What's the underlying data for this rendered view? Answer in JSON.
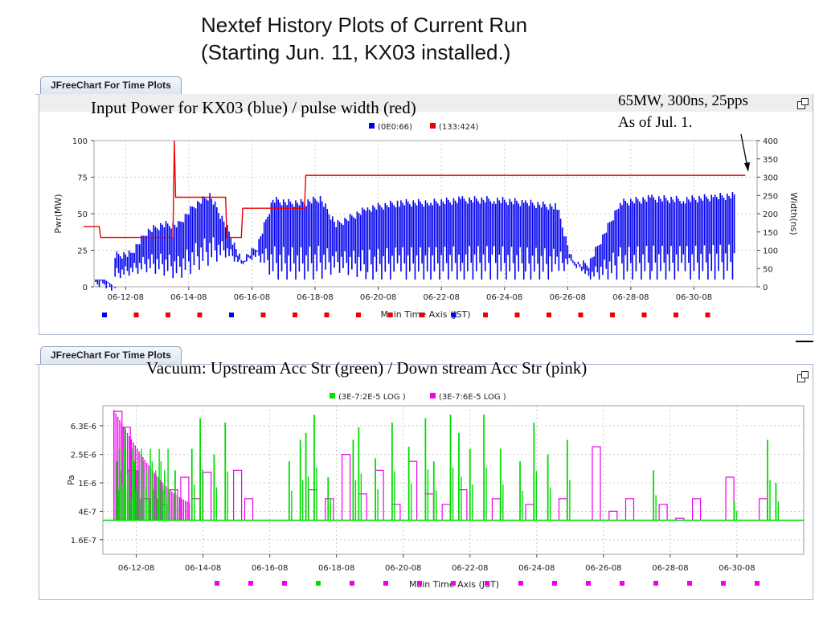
{
  "title_lines": [
    "Nextef History Plots of Current Run",
    "(Starting Jun. 11, KX03 installed.)"
  ],
  "panels": [
    {
      "tab_label": "JFreeChart For Time Plots",
      "heading": "Input Power for KX03 (blue) / pulse width (red)",
      "note": [
        "65MW, 300ns, 25pps",
        "As of Jul. 1."
      ]
    },
    {
      "tab_label": "JFreeChart For Time Plots",
      "heading": "Vacuum: Upstream Acc Str (green) / Down stream Acc Str (pink)"
    }
  ],
  "chart_data": [
    {
      "type": "line",
      "xlabel": "Main Time Axis (JST)",
      "ylabel": "Pwr(MW)",
      "y2label": "Width(ns)",
      "xlim": [
        "06-11-08",
        "07-02-08"
      ],
      "ylim": [
        0,
        100
      ],
      "y2lim": [
        0,
        400
      ],
      "yticks": [
        "0",
        "25",
        "50",
        "75",
        "100"
      ],
      "y2ticks": [
        "0",
        "50",
        "100",
        "150",
        "200",
        "250",
        "300",
        "350",
        "400"
      ],
      "xticks": [
        "06-12-08",
        "06-14-08",
        "06-16-08",
        "06-18-08",
        "06-20-08",
        "06-22-08",
        "06-24-08",
        "06-26-08",
        "06-28-08",
        "06-30-08"
      ],
      "grid": true,
      "legend_position": "top-center",
      "series": [
        {
          "name": "(0E0:66)",
          "color": "#0000ee",
          "axis": "left",
          "x": [
            "06-11-08",
            "06-11-16",
            "06-11-24",
            "06-12-00",
            "06-12-12",
            "06-13-00",
            "06-13-12",
            "06-14-00",
            "06-14-12",
            "06-15-00",
            "06-15-12",
            "06-16-00",
            "06-16-12",
            "06-17-00",
            "06-17-12",
            "06-18-00",
            "06-18-12",
            "06-19-00",
            "06-20-00",
            "06-21-00",
            "06-22-00",
            "06-23-00",
            "06-24-00",
            "06-25-00",
            "06-26-00",
            "06-26-12",
            "06-27-00",
            "06-28-00",
            "06-29-00",
            "06-30-00",
            "07-01-00",
            "07-01-16"
          ],
          "values": [
            5,
            5,
            0,
            24,
            25,
            40,
            45,
            45,
            58,
            65,
            45,
            20,
            30,
            62,
            60,
            60,
            63,
            45,
            56,
            60,
            60,
            62,
            62,
            60,
            57,
            18,
            18,
            60,
            63,
            62,
            64,
            65
          ],
          "band_min": [
            5,
            5,
            0,
            5,
            8,
            10,
            8,
            5,
            10,
            15,
            20,
            15,
            20,
            5,
            5,
            5,
            5,
            10,
            5,
            5,
            5,
            5,
            5,
            5,
            5,
            18,
            5,
            5,
            5,
            5,
            5,
            5
          ]
        },
        {
          "name": "(133:424)",
          "color": "#ee0000",
          "axis": "right",
          "x": [
            "06-11-00",
            "06-11-12",
            "06-11-13",
            "06-13-20",
            "06-13-21",
            "06-13-22",
            "06-15-12",
            "06-15-13",
            "06-16-00",
            "06-16-01",
            "06-17-00",
            "06-18-00",
            "06-18-01",
            "07-01-23"
          ],
          "values": [
            165,
            165,
            135,
            135,
            400,
            245,
            245,
            135,
            135,
            215,
            215,
            215,
            305,
            305
          ]
        }
      ],
      "annotations": [
        "65MW, 300ns, 25pps",
        "As of Jul. 1."
      ]
    },
    {
      "type": "line",
      "xlabel": "Main Time Axis (JST)",
      "ylabel": "Pa",
      "yscale": "log",
      "xlim": [
        "06-11-08",
        "07-02-08"
      ],
      "ylim": [
        "1E-7",
        "1.2E-5"
      ],
      "yticks": [
        "1.6E-7",
        "4E-7",
        "1E-6",
        "2.5E-6",
        "6.3E-6"
      ],
      "xticks": [
        "06-12-08",
        "06-14-08",
        "06-16-08",
        "06-18-08",
        "06-20-08",
        "06-22-08",
        "06-24-08",
        "06-26-08",
        "06-28-08",
        "06-30-08"
      ],
      "grid": true,
      "legend_position": "top-center",
      "series": [
        {
          "name": "(3E-7:2E-5 LOG )",
          "color": "#00dd00",
          "baseline": "3E-7",
          "spikes_x": [
            "06-11-20",
            "06-12-00",
            "06-12-06",
            "06-13-00",
            "06-13-12",
            "06-14-00",
            "06-14-06",
            "06-14-16",
            "06-15-00",
            "06-16-22",
            "06-17-06",
            "06-17-10",
            "06-17-16",
            "06-18-02",
            "06-18-20",
            "06-19-00",
            "06-19-12",
            "06-20-00",
            "06-20-12",
            "06-21-00",
            "06-21-06",
            "06-21-18",
            "06-22-00",
            "06-22-08",
            "06-22-18",
            "06-23-06",
            "06-23-20",
            "06-24-06",
            "06-24-16",
            "06-25-06",
            "06-27-20",
            "06-30-06",
            "07-01-06",
            "07-01-12"
          ],
          "spikes_y": [
            "3E-6",
            "6E-6",
            "2E-6",
            "1.2E-6",
            "1.5E-6",
            "3E-6",
            "8E-6",
            "2.5E-6",
            "7E-6",
            "2E-6",
            "4E-6",
            "5E-6",
            "9E-6",
            "1.2E-6",
            "4E-6",
            "6E-6",
            "2.2E-6",
            "7E-6",
            "3.2E-6",
            "8E-6",
            "2E-6",
            "9E-6",
            "5E-6",
            "3E-6",
            "9E-6",
            "3E-6",
            "2E-6",
            "7E-6",
            "2.5E-6",
            "4E-6",
            "1.5E-6",
            "5.5E-7",
            "4E-6",
            "1E-6"
          ]
        },
        {
          "name": "(3E-7:6E-5 LOG )",
          "color": "#ee00ee",
          "baseline": "3E-7",
          "spikes_x": [
            "06-11-16",
            "06-11-22",
            "06-12-02",
            "06-12-12",
            "06-13-00",
            "06-13-08",
            "06-13-16",
            "06-14-00",
            "06-14-08",
            "06-15-06",
            "06-15-14",
            "06-17-12",
            "06-18-00",
            "06-18-12",
            "06-19-00",
            "06-19-12",
            "06-20-00",
            "06-20-12",
            "06-21-00",
            "06-21-12",
            "06-22-00",
            "06-23-00",
            "06-24-00",
            "06-25-00",
            "06-26-00",
            "06-26-12",
            "06-27-00",
            "06-28-00",
            "06-28-12",
            "06-29-00",
            "06-30-00",
            "07-01-00"
          ],
          "spikes_y": [
            "1E-5",
            "6E-6",
            "1.5E-6",
            "6E-7",
            "5E-7",
            "8E-7",
            "1.2E-6",
            "6E-7",
            "1.4E-6",
            "1.5E-6",
            "6E-7",
            "8E-7",
            "6E-7",
            "2.5E-6",
            "7E-7",
            "1.5E-6",
            "5E-7",
            "2E-6",
            "7E-7",
            "5E-7",
            "8E-7",
            "6E-7",
            "5E-7",
            "6E-7",
            "3.2E-6",
            "4E-7",
            "6E-7",
            "5E-7",
            "3.2E-7",
            "6E-7",
            "1.2E-6",
            "6E-7"
          ]
        }
      ]
    }
  ]
}
